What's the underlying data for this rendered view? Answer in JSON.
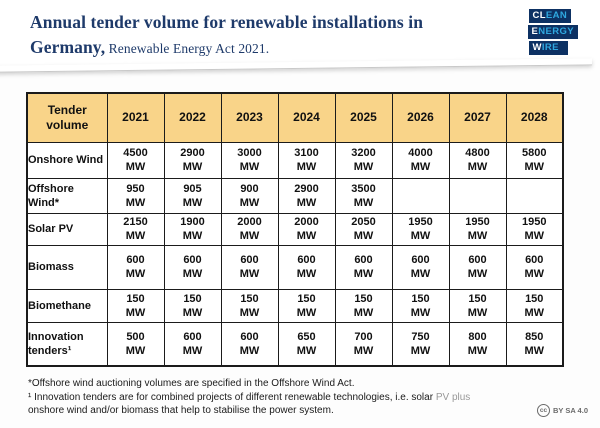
{
  "header": {
    "title_line1": "Annual tender volume for renewable installations in",
    "title_line2_bold": "Germany,",
    "title_line2_rest": " Renewable Energy Act 2021.",
    "logo": {
      "name": "clean-energy-wire-logo",
      "rows": [
        {
          "white": "CL",
          "blue": "EAN"
        },
        {
          "white": "E",
          "blue": "NERGY"
        },
        {
          "white": "W",
          "blue": "IRE"
        }
      ]
    }
  },
  "chart_data": {
    "type": "table",
    "title": "Annual tender volume for renewable installations in Germany, Renewable Energy Act 2021.",
    "corner_header": "Tender volume",
    "columns": [
      "2021",
      "2022",
      "2023",
      "2024",
      "2025",
      "2026",
      "2027",
      "2028"
    ],
    "unit": "MW",
    "rows": [
      {
        "label": "Onshore Wind",
        "values": [
          4500,
          2900,
          3000,
          3100,
          3200,
          4000,
          4800,
          5800
        ]
      },
      {
        "label": "Offshore Wind*",
        "values": [
          950,
          905,
          900,
          2900,
          3500,
          null,
          null,
          null
        ]
      },
      {
        "label": "Solar PV",
        "values": [
          2150,
          1900,
          2000,
          2000,
          2050,
          1950,
          1950,
          1950
        ]
      },
      {
        "label": "Biomass",
        "values": [
          600,
          600,
          600,
          600,
          600,
          600,
          600,
          600
        ]
      },
      {
        "label": "Biomethane",
        "values": [
          150,
          150,
          150,
          150,
          150,
          150,
          150,
          150
        ]
      },
      {
        "label": "Innovation tenders¹",
        "values": [
          500,
          600,
          600,
          650,
          700,
          750,
          800,
          850
        ]
      }
    ]
  },
  "footnotes": {
    "line1": "*Offshore wind auctioning volumes are specified in the Offshore Wind Act.",
    "line2_main": "¹ Innovation tenders are for combined projects of different renewable technologies, i.e. solar ",
    "line2_faded": "PV plus",
    "line3": "onshore wind and/or biomass that help to stabilise the power system."
  },
  "license": {
    "icon_text": "cc",
    "label": "BY SA 4.0"
  },
  "colors": {
    "title_navy": "#1e3a6a",
    "logo_navy": "#0d3163",
    "logo_light_blue": "#2fa8e0",
    "table_header_fill": "#f9d489",
    "table_border": "#1b1b1b",
    "footnote_gray": "#1a1a1a",
    "license_gray": "#6b6b6b"
  }
}
